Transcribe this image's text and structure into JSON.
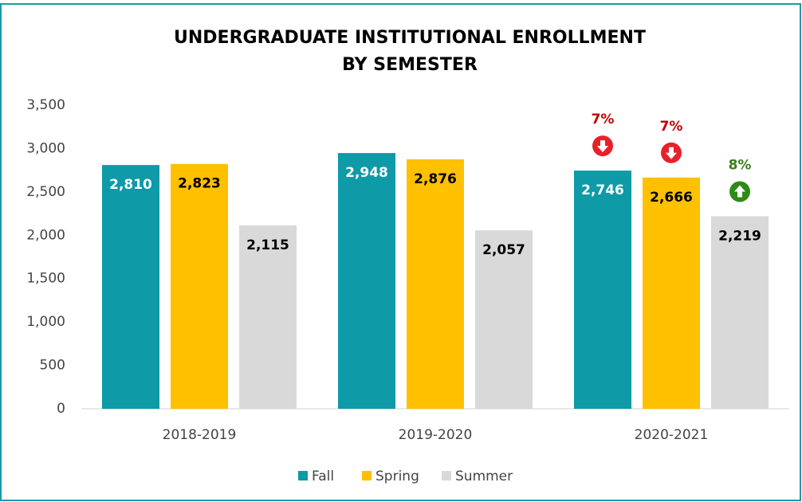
{
  "chart_data": {
    "type": "bar",
    "title": [
      "UNDERGRADUATE INSTITUTIONAL ENROLLMENT",
      "BY SEMESTER"
    ],
    "categories": [
      "2018-2019",
      "2019-2020",
      "2020-2021"
    ],
    "series": [
      {
        "name": "Fall",
        "color": "#0e9aa7",
        "label_color": "#ffffff",
        "values": [
          2810,
          2948,
          2746
        ],
        "value_labels": [
          "2,810",
          "2,948",
          "2,746"
        ],
        "changes": [
          null,
          null,
          "7%"
        ],
        "change_directions": [
          null,
          null,
          "down"
        ]
      },
      {
        "name": "Spring",
        "color": "#ffc000",
        "label_color": "#000000",
        "values": [
          2823,
          2876,
          2666
        ],
        "value_labels": [
          "2,823",
          "2,876",
          "2,666"
        ],
        "changes": [
          null,
          null,
          "7%"
        ],
        "change_directions": [
          null,
          null,
          "down"
        ]
      },
      {
        "name": "Summer",
        "color": "#d9d9d9",
        "label_color": "#000000",
        "values": [
          2115,
          2057,
          2219
        ],
        "value_labels": [
          "2,115",
          "2,057",
          "2,219"
        ],
        "changes": [
          null,
          null,
          "8%"
        ],
        "change_directions": [
          null,
          null,
          "up"
        ]
      }
    ],
    "change_colors": {
      "down": "#e8202a",
      "up": "#2e8b14"
    },
    "change_text_colors": {
      "down": "#c00000",
      "up": "#3a7d1a"
    },
    "ylim": [
      0,
      3500
    ],
    "yticks": [
      0,
      500,
      {
        "value": 1000,
        "label": "1,000"
      },
      {
        "value": 1500,
        "label": "1,500"
      },
      {
        "value": 2000,
        "label": "2,000"
      },
      {
        "value": 2500,
        "label": "2,500"
      },
      {
        "value": 3000,
        "label": "3,000"
      },
      {
        "value": 3500,
        "label": "3,500"
      }
    ],
    "grid": false,
    "legend": "bottom"
  }
}
